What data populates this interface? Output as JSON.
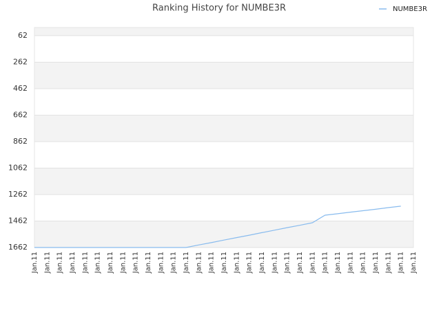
{
  "chart_data": {
    "type": "line",
    "title": "Ranking History for NUMBE3R",
    "categories": [
      "Jan.11",
      "Jan.11",
      "Jan.11",
      "Jan.11",
      "Jan.11",
      "Jan.11",
      "Jan.11",
      "Jan.11",
      "Jan.11",
      "Jan.11",
      "Jan.11",
      "Jan.11",
      "Jan.11",
      "Jan.11",
      "Jan.11",
      "Jan.11",
      "Jan.11",
      "Jan.11",
      "Jan.11",
      "Jan.11",
      "Jan.11",
      "Jan.11",
      "Jan.11",
      "Jan.11",
      "Jan.11",
      "Jan.11",
      "Jan.11",
      "Jan.11",
      "Jan.11",
      "Jan.11",
      "Jan.11"
    ],
    "series": [
      {
        "name": "NUMBE3R",
        "color": "#88bbee",
        "values": [
          1662,
          1662,
          1662,
          1662,
          1662,
          1662,
          1662,
          1662,
          1662,
          1662,
          1662,
          1662,
          1662,
          1643,
          1625,
          1606,
          1587,
          1569,
          1550,
          1531,
          1512,
          1494,
          1475,
          1418,
          1407,
          1395,
          1384,
          1373,
          1361,
          1350,
          null
        ]
      }
    ],
    "ylim": [
      1662,
      0
    ],
    "yticks": [
      62,
      262,
      462,
      662,
      862,
      1062,
      1262,
      1462,
      1662
    ],
    "y_inverted": true,
    "grid": true,
    "legend": "top-right"
  }
}
